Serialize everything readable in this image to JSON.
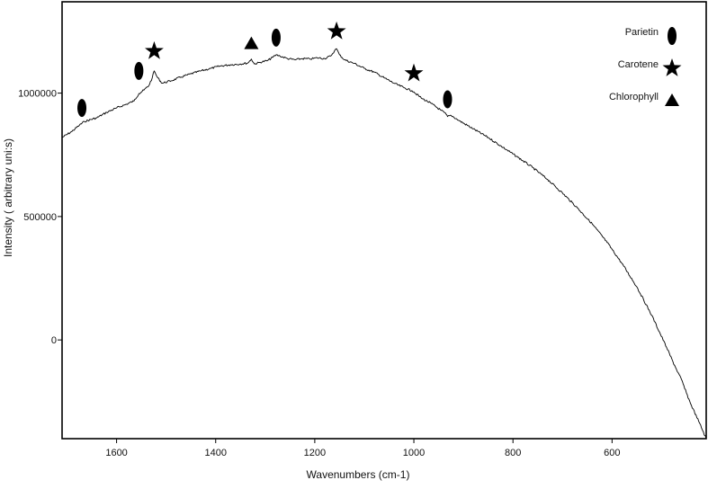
{
  "chart_data": {
    "type": "line",
    "title": "",
    "xlabel": "Wavenumbers (cm-1)",
    "ylabel": "Intensity ( arbitrary uni:s)",
    "xlim": [
      1710,
      410
    ],
    "ylim": [
      -400000,
      1370000
    ],
    "x_reversed": true,
    "grid": false,
    "legend_placement": "top-right",
    "x_ticks": [
      1600,
      1400,
      1200,
      1000,
      800,
      600
    ],
    "x_tick_labels": [
      "1600",
      "1400",
      "1200",
      "1000",
      "800",
      "600"
    ],
    "y_ticks": [
      0,
      500000,
      1000000
    ],
    "y_tick_labels": [
      "0",
      "500000",
      "1000000"
    ],
    "series": [
      {
        "color": "#000000",
        "points": [
          [
            1710,
            820000
          ],
          [
            1690,
            845000
          ],
          [
            1675,
            870000
          ],
          [
            1665,
            885000
          ],
          [
            1640,
            900000
          ],
          [
            1620,
            922000
          ],
          [
            1600,
            940000
          ],
          [
            1580,
            955000
          ],
          [
            1565,
            968000
          ],
          [
            1555,
            998000
          ],
          [
            1545,
            1012000
          ],
          [
            1535,
            1030000
          ],
          [
            1528,
            1062000
          ],
          [
            1524,
            1090000
          ],
          [
            1518,
            1065000
          ],
          [
            1508,
            1040000
          ],
          [
            1490,
            1050000
          ],
          [
            1470,
            1065000
          ],
          [
            1450,
            1078000
          ],
          [
            1430,
            1090000
          ],
          [
            1410,
            1100000
          ],
          [
            1390,
            1110000
          ],
          [
            1370,
            1115000
          ],
          [
            1350,
            1118000
          ],
          [
            1335,
            1122000
          ],
          [
            1328,
            1138000
          ],
          [
            1322,
            1118000
          ],
          [
            1310,
            1125000
          ],
          [
            1295,
            1132000
          ],
          [
            1285,
            1145000
          ],
          [
            1278,
            1155000
          ],
          [
            1270,
            1150000
          ],
          [
            1255,
            1140000
          ],
          [
            1240,
            1135000
          ],
          [
            1225,
            1140000
          ],
          [
            1210,
            1138000
          ],
          [
            1195,
            1143000
          ],
          [
            1180,
            1140000
          ],
          [
            1168,
            1150000
          ],
          [
            1160,
            1172000
          ],
          [
            1156,
            1180000
          ],
          [
            1150,
            1155000
          ],
          [
            1140,
            1135000
          ],
          [
            1120,
            1120000
          ],
          [
            1100,
            1100000
          ],
          [
            1080,
            1085000
          ],
          [
            1060,
            1062000
          ],
          [
            1040,
            1040000
          ],
          [
            1020,
            1022000
          ],
          [
            1004,
            1010000
          ],
          [
            1000,
            1005000
          ],
          [
            985,
            980000
          ],
          [
            965,
            958000
          ],
          [
            945,
            930000
          ],
          [
            935,
            915000
          ],
          [
            932,
            905000
          ],
          [
            925,
            910000
          ],
          [
            910,
            890000
          ],
          [
            880,
            855000
          ],
          [
            850,
            820000
          ],
          [
            820,
            780000
          ],
          [
            790,
            740000
          ],
          [
            760,
            698000
          ],
          [
            730,
            650000
          ],
          [
            700,
            595000
          ],
          [
            670,
            535000
          ],
          [
            640,
            470000
          ],
          [
            610,
            395000
          ],
          [
            580,
            310000
          ],
          [
            550,
            215000
          ],
          [
            520,
            100000
          ],
          [
            490,
            -30000
          ],
          [
            470,
            -120000
          ],
          [
            460,
            -160000
          ],
          [
            450,
            -215000
          ],
          [
            440,
            -265000
          ],
          [
            425,
            -330000
          ],
          [
            410,
            -400000
          ]
        ]
      }
    ],
    "markers": [
      {
        "label": "Parietin",
        "symbol": "ellipse",
        "x": 1670,
        "y": 940000
      },
      {
        "label": "Parietin",
        "symbol": "ellipse",
        "x": 1555,
        "y": 1090000
      },
      {
        "label": "Carotene",
        "symbol": "star",
        "x": 1524,
        "y": 1170000
      },
      {
        "label": "Chlorophyll",
        "symbol": "triangle",
        "x": 1328,
        "y": 1200000
      },
      {
        "label": "Parietin",
        "symbol": "ellipse",
        "x": 1278,
        "y": 1225000
      },
      {
        "label": "Carotene",
        "symbol": "star",
        "x": 1156,
        "y": 1250000
      },
      {
        "label": "Carotene",
        "symbol": "star",
        "x": 1000,
        "y": 1080000
      },
      {
        "label": "Parietin",
        "symbol": "ellipse",
        "x": 932,
        "y": 975000
      }
    ],
    "legend": [
      {
        "label": "Parietin",
        "symbol": "ellipse"
      },
      {
        "label": "Carotene",
        "symbol": "star"
      },
      {
        "label": "Chlorophyll",
        "symbol": "triangle"
      }
    ]
  }
}
